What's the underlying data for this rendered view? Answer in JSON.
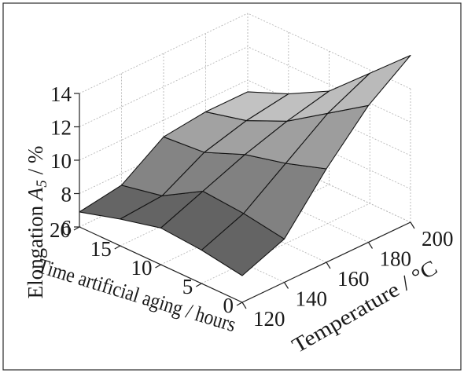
{
  "chart_data": {
    "type": "surface",
    "xlabel": "Temperature / °C",
    "ylabel": "Time artificial aging / hours",
    "zlabel_main": "Elongation ",
    "zlabel_var": "A",
    "zlabel_sub": "5",
    "zlabel_unit": " / %",
    "x_ticks": [
      "120",
      "140",
      "160",
      "180",
      "200"
    ],
    "y_ticks": [
      "0",
      "5",
      "10",
      "15",
      "20"
    ],
    "z_ticks": [
      "6",
      "8",
      "10",
      "12",
      "14"
    ],
    "xlim": [
      120,
      200
    ],
    "ylim": [
      0,
      20
    ],
    "zlim": [
      6,
      14
    ],
    "grid": true,
    "x": [
      120,
      140,
      160,
      180,
      200
    ],
    "y": [
      0,
      5,
      10,
      15,
      20
    ],
    "z": [
      [
        7.6,
        8.6,
        11.6,
        14.2,
        16.0
      ],
      [
        8.0,
        9.0,
        10.8,
        12.6,
        13.8
      ],
      [
        8.2,
        9.2,
        10.2,
        11.0,
        11.6
      ],
      [
        7.6,
        7.8,
        9.2,
        9.9,
        10.3
      ],
      [
        6.9,
        7.3,
        9.0,
        9.3,
        9.3
      ]
    ]
  }
}
